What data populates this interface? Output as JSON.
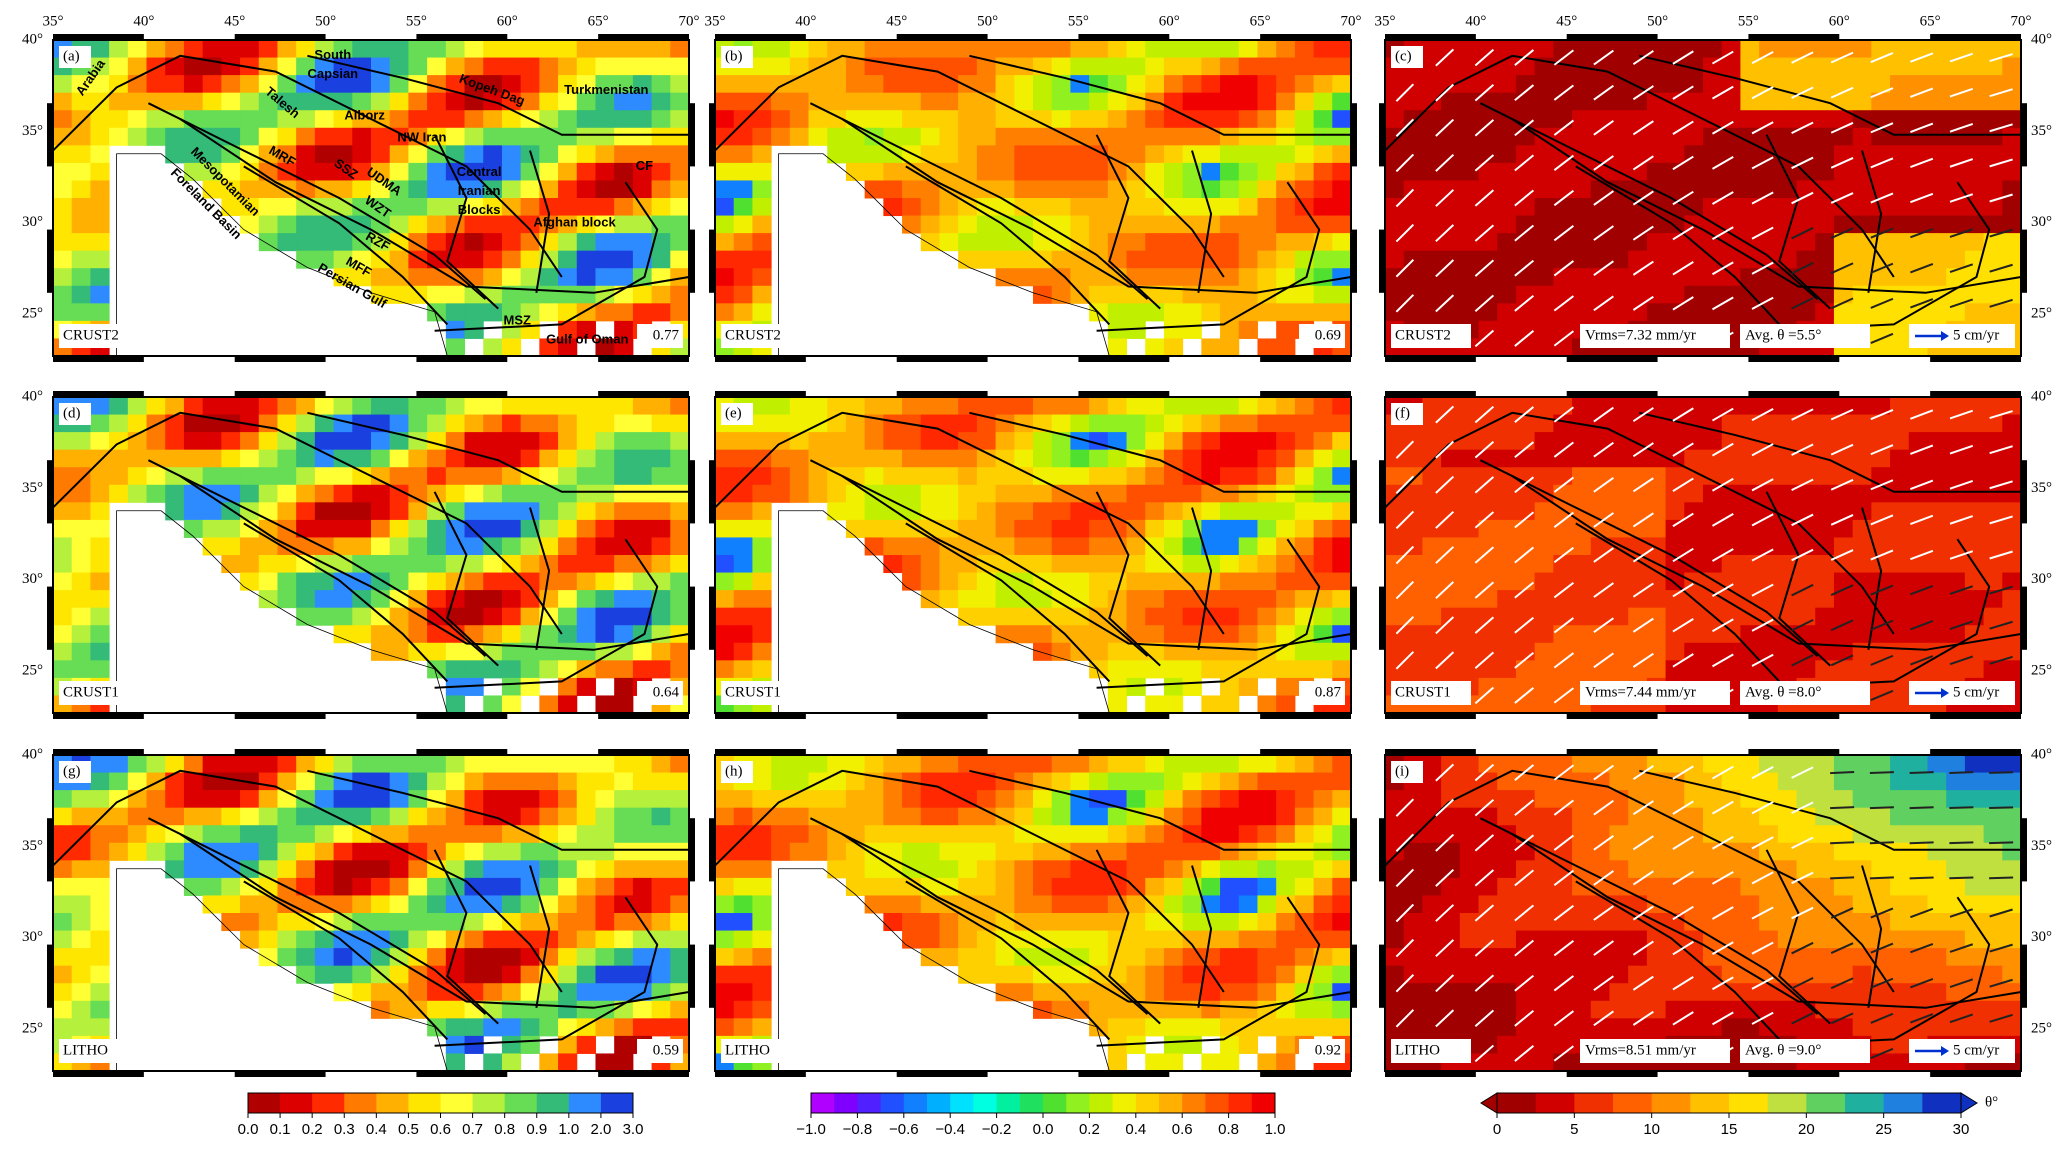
{
  "longitude_ticks": [
    "35°",
    "40°",
    "45°",
    "50°",
    "55°",
    "60°",
    "65°",
    "70°"
  ],
  "latitude_ticks": [
    "25°",
    "30°",
    "35°",
    "40°"
  ],
  "panels": [
    {
      "label": "(a)",
      "model": "CRUST2",
      "value": "0.77",
      "annotations": [
        "Arabia",
        "Talesh",
        "South",
        "Capsian",
        "Alborz",
        "Kopeh Dag",
        "Turkmenistan",
        "NW Iran",
        "MRF",
        "Mesopotamian",
        "Foreland Basin",
        "SSZ",
        "UDMA",
        "Central",
        "Iranian",
        "Blocks",
        "CF",
        "WZT",
        "Afghan block",
        "RZF",
        "Persian Gulf",
        "MFF",
        "MSZ",
        "Gulf of Oman"
      ]
    },
    {
      "label": "(b)",
      "model": "CRUST2",
      "value": "0.69"
    },
    {
      "label": "(c)",
      "model": "CRUST2",
      "vrms": "Vrms=7.32 mm/yr",
      "avg_theta": "Avg. θ =5.5°",
      "scale": "5 cm/yr"
    },
    {
      "label": "(d)",
      "model": "CRUST1",
      "value": "0.64"
    },
    {
      "label": "(e)",
      "model": "CRUST1",
      "value": "0.87"
    },
    {
      "label": "(f)",
      "model": "CRUST1",
      "vrms": "Vrms=7.44 mm/yr",
      "avg_theta": "Avg. θ =8.0°",
      "scale": "5 cm/yr"
    },
    {
      "label": "(g)",
      "model": "LITHO",
      "value": "0.59"
    },
    {
      "label": "(h)",
      "model": "LITHO",
      "value": "0.92"
    },
    {
      "label": "(i)",
      "model": "LITHO",
      "vrms": "Vrms=8.51 mm/yr",
      "avg_theta": "Avg. θ =9.0°",
      "scale": "5 cm/yr"
    }
  ],
  "colorbars": [
    {
      "ticks": [
        "0.0",
        "0.1",
        "0.2",
        "0.3",
        "0.4",
        "0.5",
        "0.6",
        "0.7",
        "0.8",
        "0.9",
        "1.0",
        "2.0",
        "3.0"
      ]
    },
    {
      "ticks": [
        "−1.0",
        "−0.8",
        "−0.6",
        "−0.4",
        "−0.2",
        "0.0",
        "0.2",
        "0.4",
        "0.6",
        "0.8",
        "1.0"
      ]
    },
    {
      "ticks": [
        "0",
        "5",
        "10",
        "15",
        "20",
        "25",
        "30"
      ],
      "unit": "θ°"
    }
  ]
}
